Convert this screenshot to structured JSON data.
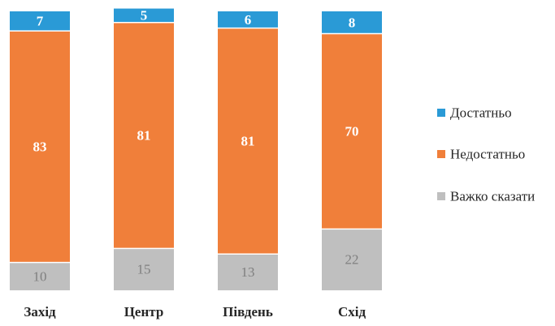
{
  "chart_data": {
    "type": "bar",
    "stacked": true,
    "normalized_percent": true,
    "categories": [
      "Захід",
      "Центр",
      "Південь",
      "Схід"
    ],
    "series": [
      {
        "name": "Важко сказати",
        "values": [
          10,
          15,
          13,
          22
        ],
        "color": "#bfbfbf"
      },
      {
        "name": "Недостатньо",
        "values": [
          83,
          81,
          81,
          70
        ],
        "color": "#f07f3a"
      },
      {
        "name": "Достатньо",
        "values": [
          7,
          5,
          6,
          8
        ],
        "color": "#2a9ad6"
      }
    ],
    "legend_order": [
      "Достатньо",
      "Недостатньо",
      "Важко сказати"
    ],
    "legend_position": "right",
    "title": "",
    "xlabel": "",
    "ylabel": "",
    "ylim": [
      0,
      100
    ],
    "grid": false,
    "data_labels": true
  }
}
